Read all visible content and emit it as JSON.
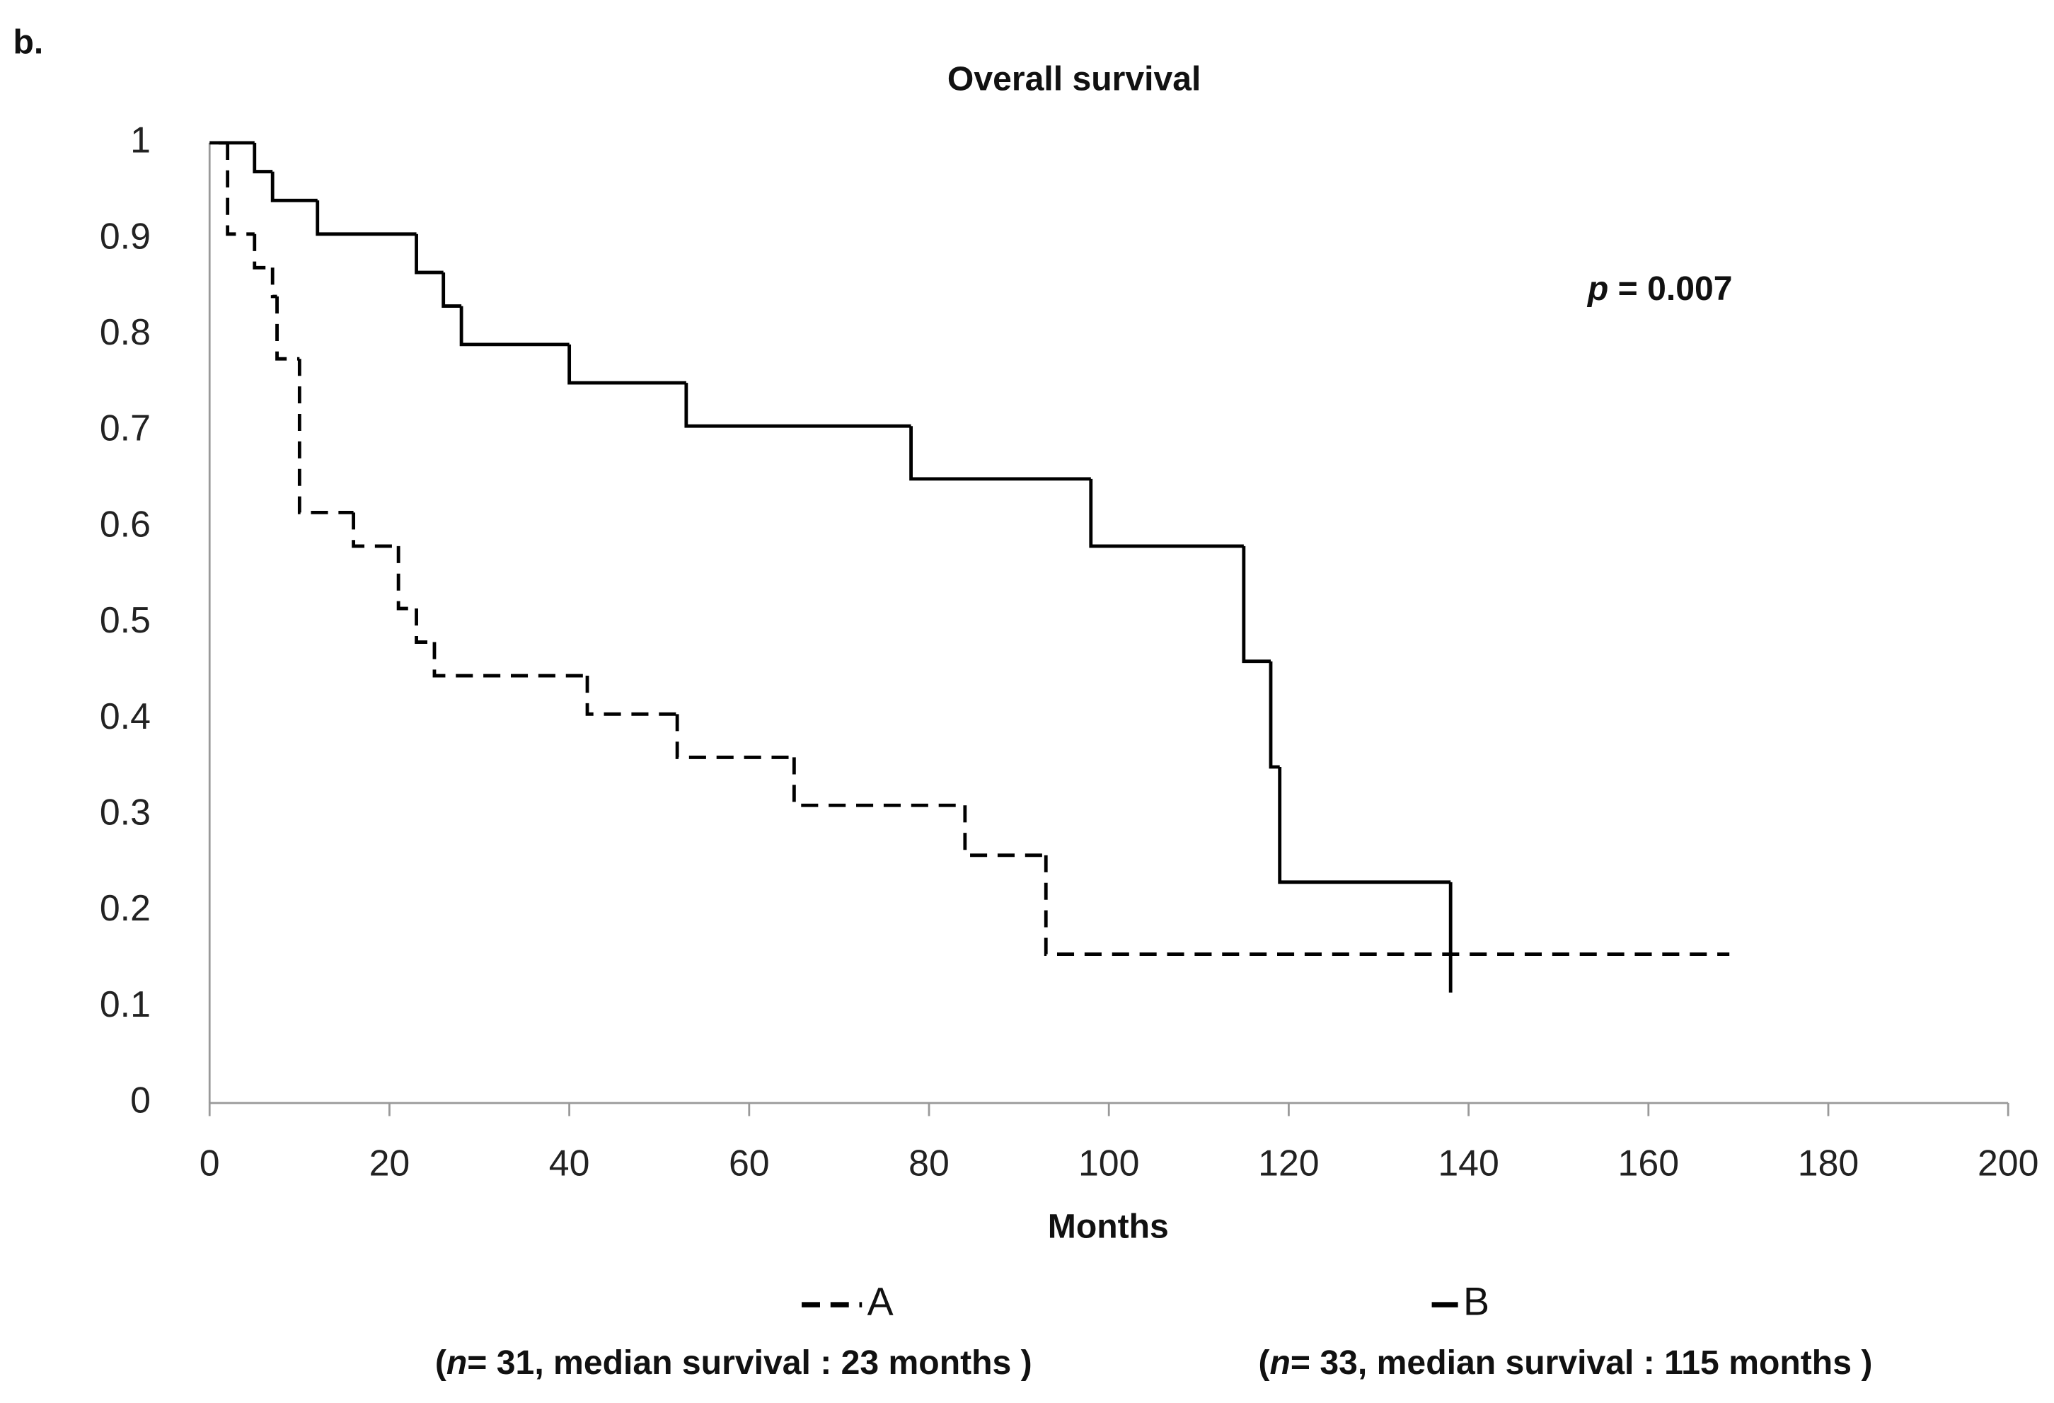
{
  "panel_label": "b.",
  "chart_data": {
    "type": "step",
    "title": "Overall survival",
    "xlabel": "Months",
    "xlim": [
      0,
      200
    ],
    "xticks": [
      0,
      20,
      40,
      60,
      80,
      100,
      120,
      140,
      160,
      180,
      200
    ],
    "ylim": [
      0,
      1
    ],
    "yticks": [
      0,
      0.1,
      0.2,
      0.3,
      0.4,
      0.5,
      0.6,
      0.7,
      0.8,
      0.9,
      1
    ],
    "annotation": [
      "p",
      " = 0.007"
    ],
    "series": [
      {
        "name": "A",
        "color": "#000000",
        "dashed": true,
        "note": [
          "(",
          "n",
          "= 31, median survival : 23 months )"
        ],
        "x": [
          1,
          2,
          5,
          7,
          7.5,
          10,
          16,
          21,
          23,
          25,
          42,
          52,
          65,
          84,
          93,
          169
        ],
        "values": [
          1,
          0.905,
          0.87,
          0.84,
          0.775,
          0.615,
          0.58,
          0.515,
          0.48,
          0.445,
          0.405,
          0.36,
          0.31,
          0.258,
          0.155,
          0.155
        ]
      },
      {
        "name": "B",
        "color": "#000000",
        "dashed": false,
        "note": [
          "(",
          "n",
          "= 33, median survival : 115 months )"
        ],
        "x": [
          0,
          5,
          7,
          12,
          23,
          26,
          28,
          40,
          53,
          78,
          98,
          115,
          118,
          119,
          138
        ],
        "values": [
          1,
          0.97,
          0.94,
          0.905,
          0.865,
          0.83,
          0.79,
          0.75,
          0.705,
          0.65,
          0.58,
          0.46,
          0.35,
          0.23,
          0.115
        ]
      }
    ]
  }
}
